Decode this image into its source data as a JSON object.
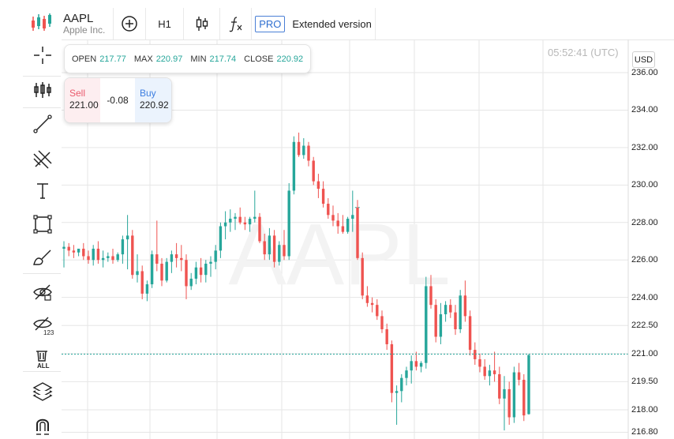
{
  "header": {
    "symbol": "AAPL",
    "company": "Apple Inc.",
    "timeframe": "H1",
    "pro_badge": "PRO",
    "extended_label": "Extended version",
    "toolbar_icons": [
      "candlesticks-logo-icon",
      "add-circle-icon",
      "candle-chart-type-icon",
      "function-fx-icon"
    ]
  },
  "sidebar": {
    "icons": [
      "crosshair-icon",
      "indicators-icon",
      "trend-line-icon",
      "pitchfork-icon",
      "text-tool-icon",
      "rectangle-icon",
      "brush-icon",
      "hide-drawings-icon",
      "hide-123-icon",
      "remove-all-icon",
      "layers-icon",
      "magnet-icon"
    ]
  },
  "ohlc": {
    "open_label": "OPEN",
    "open": "217.77",
    "max_label": "MAX",
    "max": "220.97",
    "min_label": "MIN",
    "min": "217.74",
    "close_label": "CLOSE",
    "close": "220.92"
  },
  "trade": {
    "sell_label": "Sell",
    "sell_price": "221.00",
    "spread": "-0.08",
    "buy_label": "Buy",
    "buy_price": "220.92"
  },
  "clock": "05:52:41 (UTC)",
  "currency": "USD",
  "watermark": "AAPL",
  "colors": {
    "up": "#26a69a",
    "down": "#ef5350",
    "price_line": "#26a69a",
    "grid": "#e6e6e6"
  },
  "chart_data": {
    "type": "candlestick",
    "ylim": [
      216.5,
      236.5
    ],
    "y_ticks": [
      "236.00",
      "234.00",
      "232.00",
      "230.00",
      "228.00",
      "226.00",
      "224.00",
      "222.50",
      "221.00",
      "219.50",
      "218.00",
      "216.80"
    ],
    "current_price": 220.97,
    "candles": [
      [
        226.6,
        227.0,
        225.6,
        226.7
      ],
      [
        226.7,
        226.9,
        226.2,
        226.5
      ],
      [
        226.5,
        226.8,
        226.1,
        226.4
      ],
      [
        226.4,
        226.6,
        226.2,
        226.6
      ],
      [
        226.6,
        226.9,
        226.0,
        226.2
      ],
      [
        226.2,
        226.5,
        225.8,
        226.0
      ],
      [
        226.0,
        226.8,
        225.7,
        226.6
      ],
      [
        226.6,
        227.0,
        225.8,
        226.0
      ],
      [
        226.0,
        226.5,
        225.6,
        226.1
      ],
      [
        226.1,
        226.4,
        225.9,
        226.2
      ],
      [
        226.2,
        226.6,
        225.8,
        226.0
      ],
      [
        226.0,
        226.4,
        225.9,
        226.3
      ],
      [
        226.3,
        227.3,
        225.8,
        227.1
      ],
      [
        227.1,
        228.4,
        225.5,
        227.3
      ],
      [
        227.3,
        227.6,
        225.0,
        225.2
      ],
      [
        225.2,
        226.3,
        224.8,
        225.4
      ],
      [
        225.4,
        225.7,
        223.9,
        224.2
      ],
      [
        224.2,
        224.9,
        223.8,
        224.7
      ],
      [
        224.7,
        226.5,
        224.5,
        226.3
      ],
      [
        226.3,
        228.1,
        225.4,
        225.8
      ],
      [
        225.8,
        226.1,
        224.6,
        224.9
      ],
      [
        224.9,
        226.1,
        224.8,
        225.9
      ],
      [
        225.9,
        226.5,
        225.3,
        226.3
      ],
      [
        226.3,
        226.9,
        225.6,
        226.1
      ],
      [
        226.1,
        226.8,
        225.4,
        226.0
      ],
      [
        226.0,
        226.3,
        223.9,
        224.6
      ],
      [
        224.6,
        225.3,
        224.4,
        225.0
      ],
      [
        225.0,
        225.9,
        224.7,
        225.6
      ],
      [
        225.6,
        226.1,
        224.8,
        225.2
      ],
      [
        225.2,
        226.0,
        224.8,
        225.8
      ],
      [
        225.8,
        226.2,
        225.1,
        225.9
      ],
      [
        225.9,
        226.8,
        225.5,
        226.5
      ],
      [
        226.5,
        228.0,
        226.1,
        227.8
      ],
      [
        227.8,
        228.6,
        227.1,
        228.0
      ],
      [
        228.0,
        228.7,
        227.5,
        228.2
      ],
      [
        228.2,
        228.5,
        227.6,
        228.3
      ],
      [
        228.3,
        228.8,
        227.9,
        228.0
      ],
      [
        228.0,
        228.3,
        227.6,
        227.9
      ],
      [
        227.9,
        228.3,
        227.5,
        228.2
      ],
      [
        228.2,
        229.7,
        228.0,
        228.3
      ],
      [
        228.3,
        228.5,
        226.9,
        227.0
      ],
      [
        227.0,
        227.4,
        226.0,
        226.3
      ],
      [
        226.3,
        227.7,
        226.0,
        227.3
      ],
      [
        227.3,
        227.6,
        225.6,
        225.9
      ],
      [
        225.9,
        227.0,
        225.7,
        226.8
      ],
      [
        226.8,
        227.6,
        226.0,
        226.2
      ],
      [
        226.2,
        230.1,
        226.0,
        229.7
      ],
      [
        229.7,
        232.6,
        229.5,
        232.3
      ],
      [
        232.3,
        232.8,
        231.5,
        231.6
      ],
      [
        231.6,
        232.5,
        231.4,
        232.1
      ],
      [
        232.1,
        232.3,
        231.0,
        231.3
      ],
      [
        231.3,
        231.5,
        230.0,
        230.2
      ],
      [
        230.2,
        230.6,
        229.3,
        229.8
      ],
      [
        229.8,
        230.2,
        228.8,
        229.0
      ],
      [
        229.0,
        229.3,
        228.2,
        228.4
      ],
      [
        228.4,
        228.9,
        227.8,
        228.1
      ],
      [
        228.1,
        228.5,
        227.4,
        227.8
      ],
      [
        227.8,
        228.4,
        227.4,
        227.5
      ],
      [
        227.5,
        228.3,
        227.4,
        228.2
      ],
      [
        228.2,
        229.7,
        227.5,
        228.4
      ],
      [
        228.8,
        229.2,
        226.0,
        226.1
      ],
      [
        226.1,
        226.4,
        223.9,
        224.1
      ],
      [
        224.1,
        224.6,
        223.5,
        223.7
      ],
      [
        223.7,
        224.0,
        223.2,
        223.6
      ],
      [
        223.6,
        223.9,
        222.8,
        223.0
      ],
      [
        223.0,
        223.3,
        222.1,
        222.3
      ],
      [
        222.3,
        222.6,
        221.2,
        221.5
      ],
      [
        221.5,
        221.7,
        218.4,
        218.9
      ],
      [
        218.9,
        219.3,
        217.2,
        219.0
      ],
      [
        219.0,
        219.9,
        218.4,
        219.7
      ],
      [
        219.7,
        220.3,
        219.3,
        220.1
      ],
      [
        220.1,
        220.9,
        219.4,
        220.6
      ],
      [
        220.6,
        221.1,
        220.1,
        220.3
      ],
      [
        220.3,
        220.6,
        220.0,
        220.5
      ],
      [
        220.5,
        225.1,
        220.2,
        224.6
      ],
      [
        224.6,
        225.2,
        223.4,
        223.6
      ],
      [
        223.6,
        223.9,
        221.6,
        221.9
      ],
      [
        221.9,
        223.7,
        221.5,
        223.1
      ],
      [
        223.1,
        223.8,
        222.7,
        223.6
      ],
      [
        223.6,
        223.9,
        222.9,
        223.2
      ],
      [
        223.2,
        223.6,
        222.0,
        222.3
      ],
      [
        222.3,
        224.4,
        222.1,
        224.1
      ],
      [
        224.1,
        224.9,
        222.7,
        223.0
      ],
      [
        223.0,
        223.3,
        220.9,
        221.2
      ],
      [
        221.2,
        221.6,
        220.4,
        220.7
      ],
      [
        220.7,
        221.0,
        220.0,
        220.3
      ],
      [
        220.3,
        220.7,
        219.6,
        219.8
      ],
      [
        219.8,
        220.4,
        219.3,
        220.1
      ],
      [
        220.1,
        221.1,
        219.5,
        219.9
      ],
      [
        219.9,
        220.3,
        218.3,
        218.6
      ],
      [
        218.6,
        219.8,
        216.9,
        219.1
      ],
      [
        219.1,
        219.5,
        217.2,
        217.6
      ],
      [
        217.6,
        220.3,
        217.3,
        220.0
      ],
      [
        220.0,
        220.5,
        219.3,
        219.6
      ],
      [
        219.6,
        219.9,
        217.4,
        217.7
      ],
      [
        217.77,
        220.97,
        217.74,
        220.92
      ]
    ]
  }
}
